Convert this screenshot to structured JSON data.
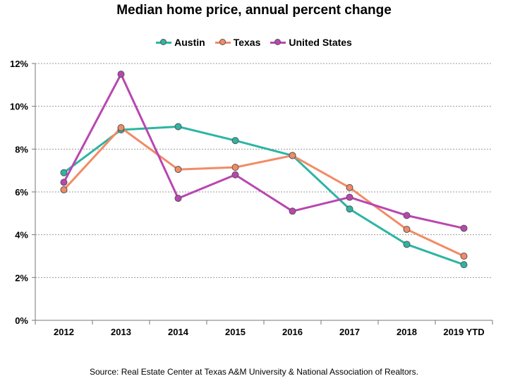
{
  "chart_data": {
    "type": "line",
    "title": "Median home price, annual percent change",
    "categories": [
      "2012",
      "2013",
      "2014",
      "2015",
      "2016",
      "2017",
      "2018",
      "2019 YTD"
    ],
    "series": [
      {
        "name": "Austin",
        "color": "#2db5a3",
        "values": [
          6.9,
          8.9,
          9.05,
          8.4,
          7.7,
          5.2,
          3.55,
          2.6
        ]
      },
      {
        "name": "Texas",
        "color": "#f28b66",
        "values": [
          6.1,
          9.0,
          7.05,
          7.15,
          7.7,
          6.2,
          4.25,
          3.0
        ]
      },
      {
        "name": "United States",
        "color": "#b946b0",
        "values": [
          6.45,
          11.5,
          5.7,
          6.8,
          5.1,
          5.75,
          4.9,
          4.3
        ]
      }
    ],
    "ylim": [
      0,
      12
    ],
    "yticks": [
      0,
      2,
      4,
      6,
      8,
      10,
      12
    ],
    "ytick_labels": [
      "0%",
      "2%",
      "4%",
      "6%",
      "8%",
      "10%",
      "12%"
    ],
    "grid": true,
    "legend_position": "top-center",
    "source": "Source: Real Estate Center at Texas A&M University & National Association of Realtors."
  }
}
